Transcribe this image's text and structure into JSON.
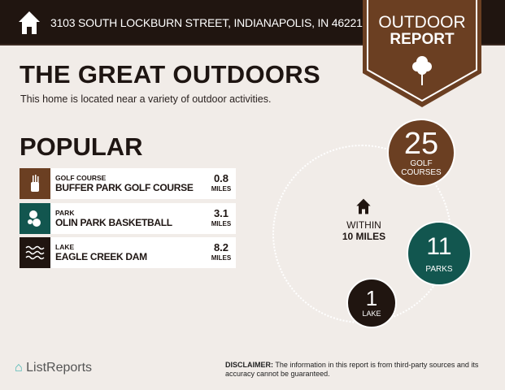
{
  "header": {
    "address": "3103 SOUTH LOCKBURN STREET, INDIANAPOLIS, IN 46221",
    "icon": "home-icon"
  },
  "badge": {
    "line1": "OUTDOOR",
    "line2": "REPORT",
    "icon": "tree-icon",
    "color": "#6b3f22"
  },
  "title": "THE GREAT OUTDOORS",
  "subtitle": "This home is located near a variety of outdoor activities.",
  "popular": {
    "heading": "POPULAR",
    "items": [
      {
        "category": "GOLF COURSE",
        "name": "BUFFER PARK GOLF COURSE",
        "distance": "0.8",
        "unit": "MILES",
        "icon": "golf-bag-icon",
        "color": "#6b3f22"
      },
      {
        "category": "PARK",
        "name": "OLIN PARK BASKETBALL",
        "distance": "3.1",
        "unit": "MILES",
        "icon": "park-tree-icon",
        "color": "#12564f"
      },
      {
        "category": "LAKE",
        "name": "EAGLE CREEK DAM",
        "distance": "8.2",
        "unit": "MILES",
        "icon": "waves-icon",
        "color": "#201510"
      }
    ]
  },
  "summary": {
    "within": "WITHIN",
    "radius": "10 MILES",
    "counts": [
      {
        "value": "25",
        "label_1": "GOLF",
        "label_2": "COURSES",
        "color": "#6b3f22"
      },
      {
        "value": "11",
        "label": "PARKS",
        "color": "#12564f"
      },
      {
        "value": "1",
        "label": "LAKE",
        "color": "#201510"
      }
    ]
  },
  "footer": {
    "logo": "ListReports",
    "disclaimer_label": "DISCLAIMER:",
    "disclaimer": " The information in this report is from third-party sources and its accuracy cannot be guaranteed."
  }
}
